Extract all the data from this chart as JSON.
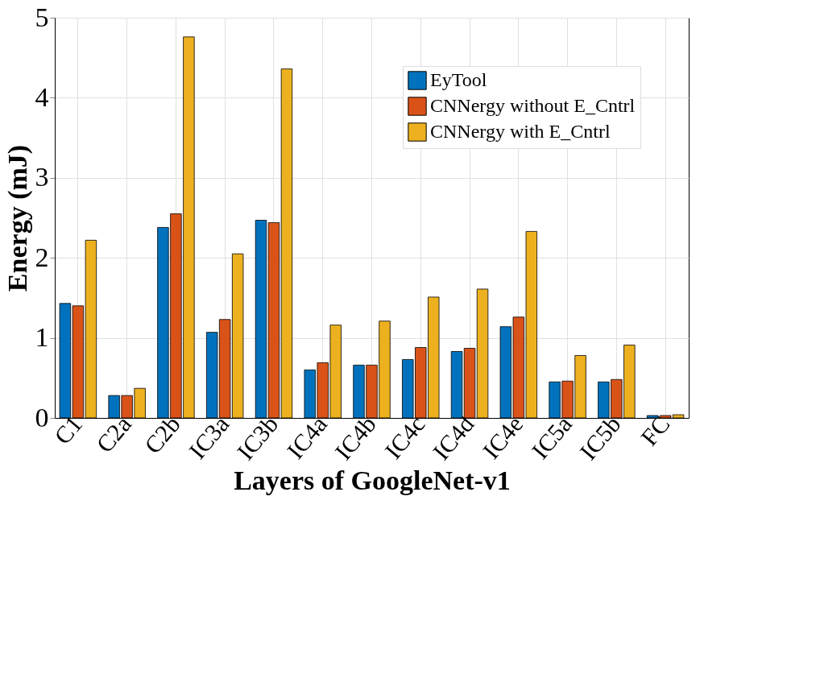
{
  "chart_data": {
    "type": "bar",
    "xlabel": "Layers of GoogleNet-v1",
    "ylabel": "Energy (mJ)",
    "categories": [
      "C1",
      "C2a",
      "C2b",
      "IC3a",
      "IC3b",
      "IC4a",
      "IC4b",
      "IC4c",
      "IC4d",
      "IC4e",
      "IC5a",
      "IC5b",
      "FC"
    ],
    "series": [
      {
        "name": "EyTool",
        "color": "#0072bd",
        "values": [
          1.43,
          0.28,
          2.38,
          1.07,
          2.47,
          0.6,
          0.66,
          0.73,
          0.83,
          1.14,
          0.45,
          0.45,
          0.03
        ]
      },
      {
        "name": "CNNergy without E_Cntrl",
        "color": "#d95319",
        "values": [
          1.4,
          0.28,
          2.55,
          1.23,
          2.44,
          0.69,
          0.66,
          0.88,
          0.87,
          1.26,
          0.46,
          0.48,
          0.03
        ]
      },
      {
        "name": "CNNergy with E_Cntrl",
        "color": "#edb120",
        "values": [
          2.22,
          0.37,
          4.76,
          2.05,
          4.36,
          1.16,
          1.21,
          1.51,
          1.61,
          2.33,
          0.78,
          0.91,
          0.04
        ]
      }
    ],
    "ylim": [
      0,
      5
    ],
    "yticks": [
      0,
      1,
      2,
      3,
      4,
      5
    ],
    "grid": true,
    "legend": "top right"
  }
}
